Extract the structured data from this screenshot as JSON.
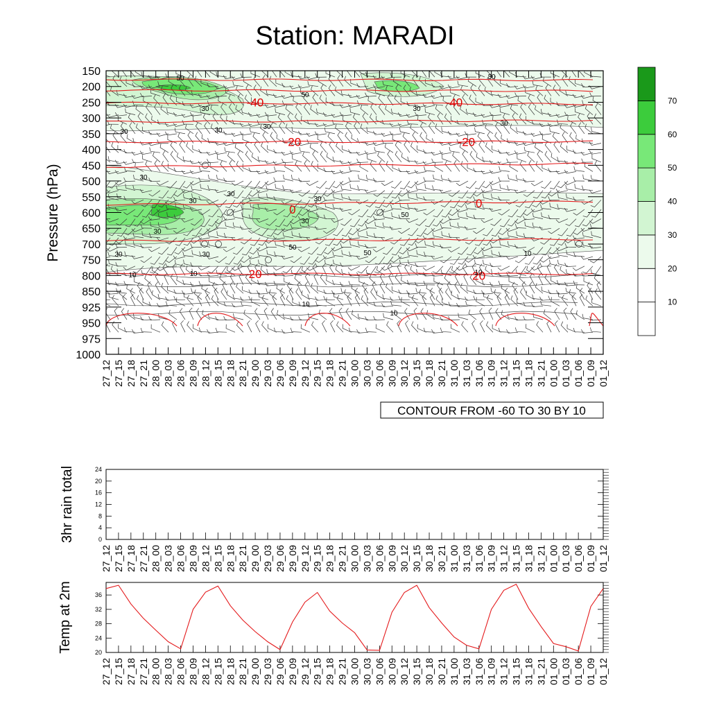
{
  "title": "Station: MARADI",
  "colors": {
    "temp_contour": "#e41a1c",
    "temp_line": "#e41a1c",
    "wind_barb": "#333333",
    "speed_fill_levels": [
      "#ffffff",
      "#ffffff",
      "#ecfaec",
      "#d2f5d2",
      "#a8eea8",
      "#78e878",
      "#3ccc3c",
      "#1a991a"
    ]
  },
  "chart_data": [
    {
      "type": "heatmap",
      "name_on_chart": "",
      "ylabel": "Pressure (hPa)",
      "y_ticks": [
        "150",
        "200",
        "250",
        "300",
        "350",
        "400",
        "450",
        "500",
        "550",
        "600",
        "650",
        "700",
        "750",
        "800",
        "850",
        "925",
        "950",
        "975",
        "1000"
      ],
      "x_ticks": [
        "27_12",
        "27_15",
        "27_18",
        "27_21",
        "28_00",
        "28_03",
        "28_06",
        "28_09",
        "28_12",
        "28_15",
        "28_18",
        "28_21",
        "29_00",
        "29_03",
        "29_06",
        "29_09",
        "29_12",
        "29_15",
        "29_18",
        "29_21",
        "30_00",
        "30_03",
        "30_06",
        "30_09",
        "30_12",
        "30_15",
        "30_18",
        "30_21",
        "31_00",
        "31_03",
        "31_06",
        "31_09",
        "31_12",
        "31_15",
        "31_18",
        "31_21",
        "01_00",
        "01_03",
        "01_06",
        "01_09",
        "01_12"
      ],
      "colorbar": {
        "labels": [
          "10",
          "20",
          "30",
          "40",
          "50",
          "60",
          "70"
        ]
      },
      "info_label": "CONTOUR FROM -60 TO 30 BY 10",
      "temperature_contour_labels": [
        {
          "text": "-40",
          "time": "29_00",
          "pressure": 250
        },
        {
          "text": "-40",
          "time": "31_00",
          "pressure": 250
        },
        {
          "text": "-20",
          "time": "29_09",
          "pressure": 375
        },
        {
          "text": "-20",
          "time": "31_03",
          "pressure": 375
        },
        {
          "text": "0",
          "time": "29_09",
          "pressure": 590
        },
        {
          "text": "0",
          "time": "31_06",
          "pressure": 570
        },
        {
          "text": "20",
          "time": "29_00",
          "pressure": 795
        },
        {
          "text": "20",
          "time": "31_06",
          "pressure": 800
        }
      ],
      "speed_contour_labels": [
        "50",
        "30",
        "50",
        "30",
        "30",
        "30",
        "30",
        "30",
        "30",
        "30",
        "30",
        "30",
        "50",
        "30",
        "50",
        "50",
        "30",
        "30",
        "30",
        "30",
        "10",
        "10",
        "10",
        "10",
        "10",
        "10"
      ]
    },
    {
      "type": "line",
      "ylabel": "3hr rain total",
      "y_ticks": [
        "0",
        "4",
        "8",
        "12",
        "16",
        "20",
        "24"
      ],
      "ylim": [
        0,
        24
      ],
      "values": []
    },
    {
      "type": "line",
      "ylabel": "Temp at 2m",
      "y_ticks": [
        "20",
        "24",
        "28",
        "32",
        "36"
      ],
      "ylim": [
        20,
        39.5
      ],
      "values": [
        37.8,
        38.7,
        33.5,
        29.5,
        26.2,
        23.0,
        21.0,
        32.0,
        36.8,
        38.5,
        33.0,
        29.0,
        25.8,
        23.0,
        20.8,
        28.5,
        34.0,
        36.7,
        31.5,
        28.2,
        25.5,
        20.7,
        20.6,
        31.2,
        36.7,
        38.7,
        32.5,
        28.2,
        24.3,
        22.0,
        21.0,
        32.0,
        37.3,
        39.0,
        32.3,
        27.2,
        22.5,
        21.6,
        20.4,
        32.8,
        37.8
      ]
    }
  ]
}
